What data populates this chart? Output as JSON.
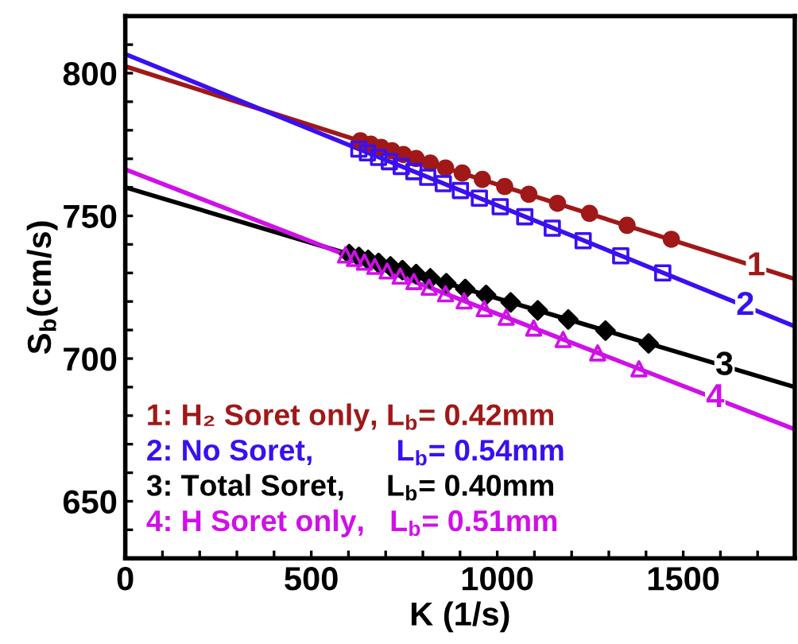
{
  "chart_data": {
    "type": "line",
    "xlabel": "K (1/s)",
    "ylabel": "S$_{b}$(cm/s)",
    "xlim": [
      0,
      1800
    ],
    "ylim": [
      630,
      820
    ],
    "xticks": [
      0,
      {
        "value": 100,
        "label": null
      },
      {
        "value": 200,
        "label": null
      },
      {
        "value": 300,
        "label": null
      },
      {
        "value": 400,
        "label": null
      },
      500,
      {
        "value": 600,
        "label": null
      },
      {
        "value": 700,
        "label": null
      },
      {
        "value": 800,
        "label": null
      },
      {
        "value": 900,
        "label": null
      },
      1000,
      {
        "value": 1100,
        "label": null
      },
      {
        "value": 1200,
        "label": null
      },
      {
        "value": 1300,
        "label": null
      },
      {
        "value": 1400,
        "label": null
      },
      1500,
      {
        "value": 1600,
        "label": null
      },
      {
        "value": 1700,
        "label": null
      },
      {
        "value": 1800,
        "label": null
      }
    ],
    "yticks": [
      {
        "value": 630,
        "label": null
      },
      {
        "value": 640,
        "label": null
      },
      650,
      {
        "value": 660,
        "label": null
      },
      {
        "value": 670,
        "label": null
      },
      {
        "value": 680,
        "label": null
      },
      {
        "value": 690,
        "label": null
      },
      700,
      {
        "value": 710,
        "label": null
      },
      {
        "value": 720,
        "label": null
      },
      {
        "value": 730,
        "label": null
      },
      {
        "value": 740,
        "label": null
      },
      750,
      {
        "value": 760,
        "label": null
      },
      {
        "value": 770,
        "label": null
      },
      {
        "value": 780,
        "label": null
      },
      {
        "value": 790,
        "label": null
      },
      800,
      {
        "value": 810,
        "label": null
      },
      {
        "value": 820,
        "label": null
      }
    ],
    "grid": false,
    "legend": "bottom left",
    "line_style": "solid",
    "series": [
      {
        "color": "#a01818",
        "x": [
          0,
          1800
        ],
        "values": [
          802.4,
          727.9
        ],
        "marker": "none"
      },
      {
        "color": "#3a10f0",
        "x": [
          0,
          1800
        ],
        "values": [
          806.7,
          711.3
        ],
        "marker": "none"
      },
      {
        "color": "#000000",
        "x": [
          0,
          1800
        ],
        "values": [
          760.0,
          690.0
        ],
        "marker": "none"
      },
      {
        "color": "#d010e8",
        "x": [
          0,
          1800
        ],
        "values": [
          766.3,
          675.2
        ],
        "marker": "none"
      },
      {
        "type": "scatter",
        "name": "1: H₂ Soret only, L$_{b}$= 0.42mm",
        "color": "#a01818",
        "marker": "circle",
        "x": [
          632,
          660,
          688,
          717,
          748,
          782,
          820,
          861,
          906,
          960,
          1020,
          1085,
          1162,
          1248,
          1349,
          1468
        ],
        "values": [
          776.3,
          775.1,
          774.0,
          772.8,
          771.5,
          770.1,
          768.5,
          766.8,
          765.0,
          762.8,
          760.3,
          757.6,
          754.4,
          750.9,
          746.7,
          741.8
        ]
      },
      {
        "type": "scatter",
        "name": "2: No Soret,          L$_{b}$= 0.54mm",
        "color": "#3a10f0",
        "marker": "square",
        "x": [
          628,
          651,
          681,
          710,
          742,
          776,
          813,
          855,
          901,
          952,
          1008,
          1074,
          1148,
          1231,
          1332,
          1445
        ],
        "values": [
          773.4,
          772.1,
          770.5,
          769.0,
          767.3,
          765.5,
          763.5,
          761.3,
          758.9,
          756.2,
          753.2,
          749.7,
          745.7,
          741.3,
          736.0,
          730.0
        ]
      },
      {
        "type": "scatter",
        "name": "3: Total Soret,     L$_{b}$= 0.40mm",
        "color": "#000000",
        "marker": "diamond",
        "x": [
          602,
          628,
          653,
          681,
          713,
          745,
          782,
          820,
          863,
          914,
          970,
          1036,
          1109,
          1191,
          1291,
          1407
        ],
        "values": [
          736.6,
          735.6,
          734.6,
          733.5,
          732.3,
          731.0,
          729.6,
          728.1,
          726.4,
          724.4,
          722.3,
          719.7,
          716.9,
          713.7,
          709.8,
          705.3
        ]
      },
      {
        "type": "scatter",
        "name": "4: H Soret only,   L$_{b}$= 0.51mm",
        "color": "#d010e8",
        "marker": "triangle",
        "x": [
          592,
          616,
          643,
          671,
          704,
          739,
          776,
          817,
          861,
          911,
          965,
          1024,
          1098,
          1177,
          1270,
          1381
        ],
        "values": [
          736.3,
          735.1,
          733.8,
          732.3,
          730.7,
          728.9,
          727.0,
          725.0,
          722.7,
          720.2,
          717.5,
          714.5,
          710.7,
          706.7,
          702.0,
          696.4
        ]
      }
    ],
    "annotations": [
      {
        "text": "1",
        "x": 1696,
        "y": 732.2
      },
      {
        "text": "2",
        "x": 1667,
        "y": 718.3
      },
      {
        "text": "3",
        "x": 1611,
        "y": 697.3
      },
      {
        "text": "4",
        "x": 1586,
        "y": 686.0
      }
    ]
  }
}
